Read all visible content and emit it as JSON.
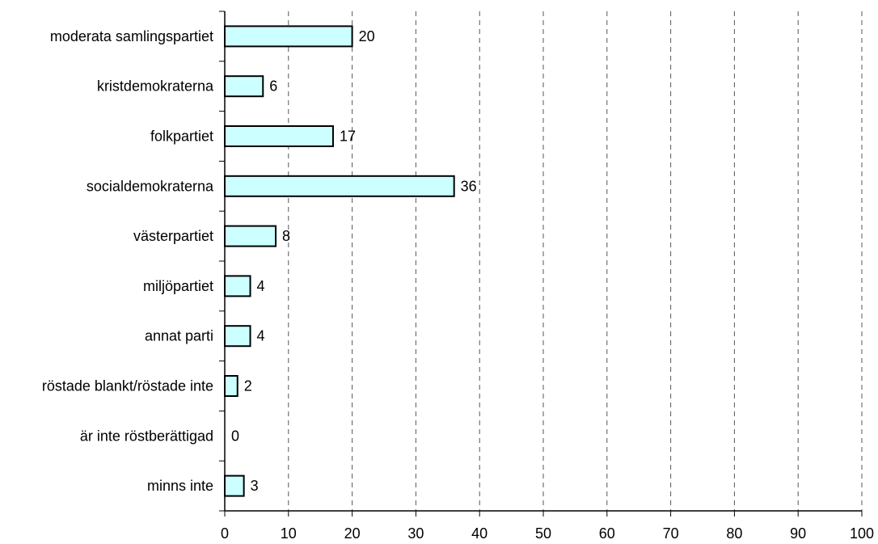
{
  "chart_data": {
    "type": "bar",
    "orientation": "horizontal",
    "categories": [
      "moderata samlingspartiet",
      "kristdemokraterna",
      "folkpartiet",
      "socialdemokraterna",
      "västerpartiet",
      "miljöpartiet",
      "annat parti",
      "röstade blankt/röstade inte",
      "är inte röstberättigad",
      "minns inte"
    ],
    "values": [
      20,
      6,
      17,
      36,
      8,
      4,
      4,
      2,
      0,
      3
    ],
    "value_labels": [
      "20",
      "6",
      "17",
      "36",
      "8",
      "4",
      "4",
      "2",
      "0",
      "3"
    ],
    "xlim": [
      0,
      100
    ],
    "xticks": [
      0,
      10,
      20,
      30,
      40,
      50,
      60,
      70,
      80,
      90,
      100
    ],
    "xtick_labels": [
      "0",
      "10",
      "20",
      "30",
      "40",
      "50",
      "60",
      "70",
      "80",
      "90",
      "100"
    ],
    "grid": "vertical-dashed",
    "legend": "none",
    "colors": {
      "bar_fill": "#ccffff",
      "bar_stroke": "#000000",
      "grid": "#555555",
      "axis": "#000000"
    }
  }
}
